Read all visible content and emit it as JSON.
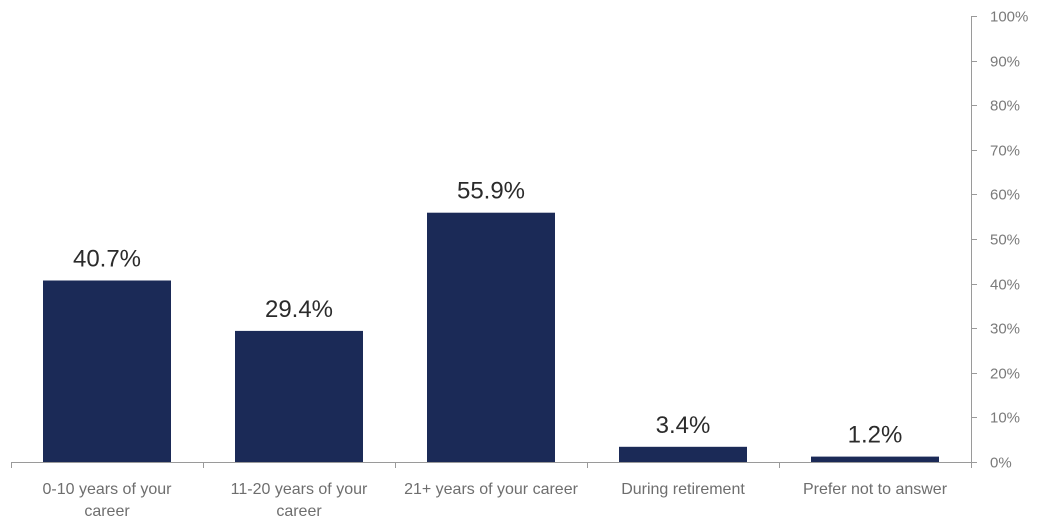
{
  "chart_data": {
    "type": "bar",
    "categories": [
      [
        "0-10 years of your",
        "career"
      ],
      [
        "11-20 years of your",
        "career"
      ],
      [
        "21+ years of your career"
      ],
      [
        "During retirement"
      ],
      [
        "Prefer not to answer"
      ]
    ],
    "values": [
      40.7,
      29.4,
      55.9,
      3.4,
      1.2
    ],
    "data_labels": [
      "40.7%",
      "29.4%",
      "55.9%",
      "3.4%",
      "1.2%"
    ],
    "title": "",
    "xlabel": "",
    "ylabel": "",
    "ylim": [
      0,
      100
    ],
    "yticks": [
      0,
      10,
      20,
      30,
      40,
      50,
      60,
      70,
      80,
      90,
      100
    ],
    "ytick_labels": [
      "0%",
      "10%",
      "20%",
      "30%",
      "40%",
      "50%",
      "60%",
      "70%",
      "80%",
      "90%",
      "100%"
    ],
    "y_axis_side": "right",
    "grid": false,
    "legend": "none",
    "colors": {
      "bar": "#1b2a57",
      "axis": "#9a9a9a",
      "tick_text": "#7a7a7a",
      "category_text": "#6e6e6e",
      "data_label_text": "#2b2b2b"
    }
  }
}
